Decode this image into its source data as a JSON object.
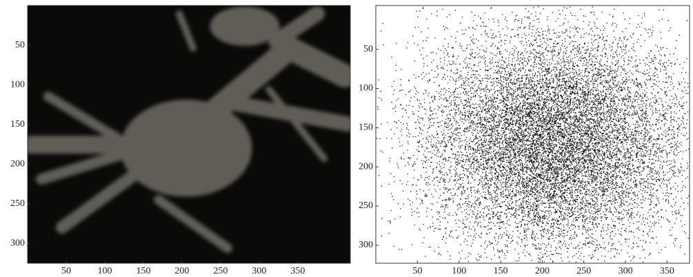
{
  "chart_data": [
    {
      "type": "image",
      "xlim": [
        0,
        418
      ],
      "ylim": [
        325,
        0
      ],
      "xticks": [
        50,
        100,
        150,
        200,
        250,
        300,
        350
      ],
      "yticks": [
        50,
        100,
        150,
        200,
        250,
        300
      ]
    },
    {
      "type": "scatter-image",
      "xlim": [
        0,
        377
      ],
      "ylim": [
        323,
        -6
      ],
      "xticks": [
        50,
        100,
        150,
        200,
        250,
        300,
        350
      ],
      "yticks": [
        50,
        100,
        150,
        200,
        250,
        300
      ]
    }
  ]
}
